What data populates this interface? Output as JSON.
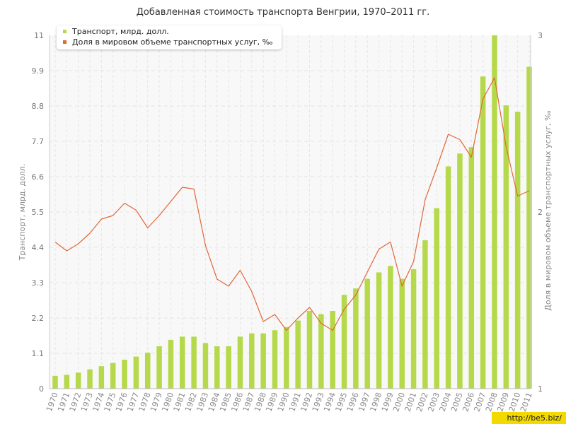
{
  "chart_data": {
    "type": "bar",
    "title": "Добавленная стоимость транспорта Венгрии, 1970–2011 гг.",
    "xlabel": "",
    "ylabel": "Транспорт, млрд. долл.",
    "y2label": "Доля в мировом объеме транспортных услуг, ‰",
    "ylim": [
      0,
      11
    ],
    "y2lim": [
      1,
      3
    ],
    "yticks": [
      "0",
      "1.1",
      "2.2",
      "3.3",
      "4.4",
      "5.5",
      "6.6",
      "7.7",
      "8.8",
      "9.9",
      "11"
    ],
    "y2ticks": [
      "1",
      "2",
      "3"
    ],
    "grid": true,
    "legend_position": "top-left",
    "categories": [
      "1970",
      "1971",
      "1972",
      "1973",
      "1974",
      "1975",
      "1976",
      "1977",
      "1978",
      "1979",
      "1980",
      "1981",
      "1982",
      "1983",
      "1984",
      "1985",
      "1986",
      "1987",
      "1988",
      "1989",
      "1990",
      "1991",
      "1992",
      "1993",
      "1994",
      "1995",
      "1996",
      "1997",
      "1998",
      "1999",
      "2000",
      "2001",
      "2002",
      "2003",
      "2004",
      "2005",
      "2006",
      "2007",
      "2008",
      "2009",
      "2010",
      "2011"
    ],
    "series": [
      {
        "name": "Транспорт, млрд. долл.",
        "type": "bar",
        "axis": "left",
        "color": "#b5d94a",
        "values": [
          0.4,
          0.43,
          0.5,
          0.6,
          0.7,
          0.8,
          0.9,
          1.0,
          1.12,
          1.32,
          1.52,
          1.62,
          1.62,
          1.42,
          1.32,
          1.32,
          1.62,
          1.72,
          1.72,
          1.82,
          1.92,
          2.12,
          2.42,
          2.32,
          2.42,
          2.92,
          3.12,
          3.42,
          3.62,
          3.82,
          3.42,
          3.72,
          4.62,
          5.62,
          6.92,
          7.32,
          7.52,
          9.72,
          11.0,
          8.82,
          8.62,
          10.02
        ]
      },
      {
        "name": "Доля в мировом объеме транспортных услуг, ‰",
        "type": "line",
        "axis": "right",
        "color": "#e0673a",
        "values": [
          1.83,
          1.78,
          1.82,
          1.88,
          1.96,
          1.98,
          2.05,
          2.01,
          1.91,
          1.98,
          2.06,
          2.14,
          2.13,
          1.81,
          1.62,
          1.58,
          1.67,
          1.55,
          1.38,
          1.42,
          1.33,
          1.4,
          1.46,
          1.37,
          1.33,
          1.45,
          1.53,
          1.66,
          1.79,
          1.83,
          1.58,
          1.72,
          2.07,
          2.25,
          2.44,
          2.41,
          2.31,
          2.64,
          2.76,
          2.37,
          2.09,
          2.12
        ]
      }
    ]
  },
  "watermark": "http://be5.biz/"
}
